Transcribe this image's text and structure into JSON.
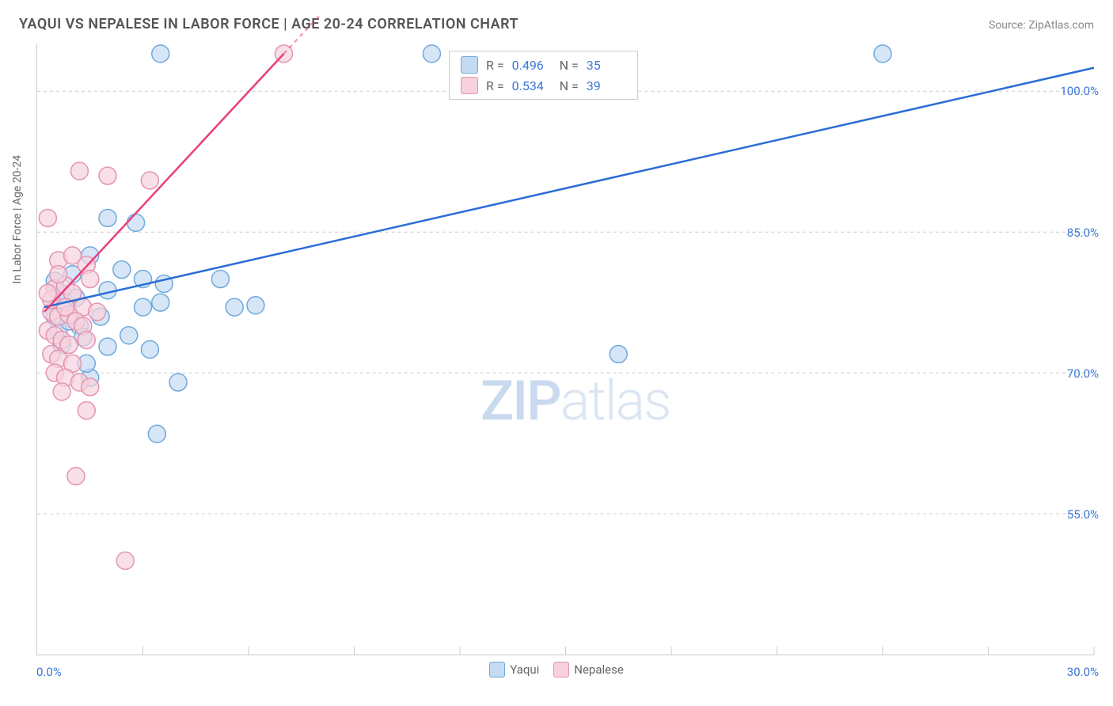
{
  "chart": {
    "type": "scatter",
    "title": "YAQUI VS NEPALESE IN LABOR FORCE | AGE 20-24 CORRELATION CHART",
    "source_label": "Source: ZipAtlas.com",
    "y_axis_label": "In Labor Force | Age 20-24",
    "background_color": "#ffffff",
    "grid_color": "#cccccc",
    "axis_tick_color": "#cccccc",
    "value_label_color": "#3b78d8",
    "text_color": "#666666",
    "title_color": "#555555",
    "watermark_text_bold": "ZIP",
    "watermark_text_light": "atlas",
    "watermark_color": "#dbe5f3",
    "x_domain": [
      0.0,
      30.0
    ],
    "y_domain": [
      40.0,
      105.0
    ],
    "x_min_label": "0.0%",
    "x_max_label": "30.0%",
    "x_ticks": [
      3,
      6,
      9,
      12,
      15,
      18,
      21,
      24,
      27,
      30
    ],
    "y_ticks": [
      {
        "v": 100.0,
        "label": "100.0%"
      },
      {
        "v": 85.0,
        "label": "85.0%"
      },
      {
        "v": 70.0,
        "label": "70.0%"
      },
      {
        "v": 55.0,
        "label": "55.0%"
      }
    ],
    "series": [
      {
        "name": "Yaqui",
        "marker_fill": "#c5dbf2",
        "marker_stroke": "#6fa8dc",
        "line_color": "#2a6dd6",
        "marker_radius": 11,
        "marker_stroke_width": 1.5,
        "line_width": 2.5,
        "R": "0.496",
        "N": "35",
        "line_from": [
          0.2,
          77.0
        ],
        "line_to": [
          30.0,
          102.5
        ],
        "points": [
          [
            3.5,
            104.0
          ],
          [
            11.2,
            104.0
          ],
          [
            24.0,
            104.0
          ],
          [
            2.0,
            86.5
          ],
          [
            2.8,
            86.0
          ],
          [
            1.0,
            80.5
          ],
          [
            1.5,
            82.5
          ],
          [
            2.4,
            81.0
          ],
          [
            3.0,
            80.0
          ],
          [
            3.6,
            79.5
          ],
          [
            5.2,
            80.0
          ],
          [
            3.0,
            77.0
          ],
          [
            3.5,
            77.5
          ],
          [
            5.6,
            77.0
          ],
          [
            6.2,
            77.2
          ],
          [
            1.2,
            75.0
          ],
          [
            2.6,
            74.0
          ],
          [
            2.0,
            72.8
          ],
          [
            3.2,
            72.5
          ],
          [
            16.5,
            72.0
          ],
          [
            1.5,
            69.5
          ],
          [
            4.0,
            69.0
          ],
          [
            3.4,
            63.5
          ],
          [
            0.8,
            77.5
          ],
          [
            0.7,
            78.5
          ],
          [
            0.5,
            79.8
          ],
          [
            1.1,
            78.0
          ],
          [
            0.6,
            74.5
          ],
          [
            0.7,
            73.0
          ],
          [
            1.4,
            71.0
          ],
          [
            0.5,
            76.0
          ],
          [
            0.9,
            75.5
          ],
          [
            2.0,
            78.8
          ],
          [
            1.8,
            76.0
          ],
          [
            1.3,
            73.8
          ]
        ]
      },
      {
        "name": "Nepalese",
        "marker_fill": "#f7d1dd",
        "marker_stroke": "#e394b1",
        "line_color": "#e83e7b",
        "marker_radius": 11,
        "marker_stroke_width": 1.5,
        "line_width": 2.5,
        "line_dashed_extension": true,
        "R": "0.534",
        "N": "39",
        "line_from": [
          0.2,
          76.5
        ],
        "line_to": [
          7.0,
          104.0
        ],
        "line_ext_to": [
          8.0,
          108.0
        ],
        "points": [
          [
            7.0,
            104.0
          ],
          [
            1.2,
            91.5
          ],
          [
            2.0,
            91.0
          ],
          [
            3.2,
            90.5
          ],
          [
            0.3,
            86.5
          ],
          [
            0.6,
            82.0
          ],
          [
            1.0,
            82.5
          ],
          [
            1.4,
            81.5
          ],
          [
            1.5,
            80.0
          ],
          [
            0.5,
            79.0
          ],
          [
            0.8,
            79.3
          ],
          [
            1.0,
            78.5
          ],
          [
            1.3,
            77.0
          ],
          [
            0.4,
            76.5
          ],
          [
            0.6,
            76.0
          ],
          [
            0.9,
            76.2
          ],
          [
            1.1,
            75.5
          ],
          [
            1.3,
            75.0
          ],
          [
            0.3,
            74.5
          ],
          [
            0.5,
            74.0
          ],
          [
            0.7,
            73.5
          ],
          [
            0.9,
            73.0
          ],
          [
            1.4,
            73.5
          ],
          [
            0.4,
            72.0
          ],
          [
            0.6,
            71.5
          ],
          [
            1.0,
            71.0
          ],
          [
            0.5,
            70.0
          ],
          [
            0.8,
            69.5
          ],
          [
            1.2,
            69.0
          ],
          [
            1.5,
            68.5
          ],
          [
            0.7,
            68.0
          ],
          [
            1.4,
            66.0
          ],
          [
            1.1,
            59.0
          ],
          [
            2.5,
            50.0
          ],
          [
            0.4,
            77.8
          ],
          [
            0.8,
            77.0
          ],
          [
            0.3,
            78.5
          ],
          [
            0.6,
            80.5
          ],
          [
            1.7,
            76.5
          ]
        ]
      }
    ],
    "correlation_box": {
      "R_label": "R =",
      "N_label": "N ="
    },
    "bottom_legend_items": [
      "Yaqui",
      "Nepalese"
    ]
  }
}
